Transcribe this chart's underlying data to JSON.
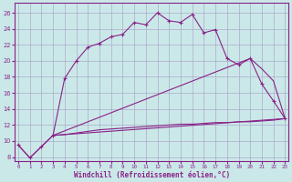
{
  "xlabel": "Windchill (Refroidissement éolien,°C)",
  "background_color": "#cbe8e8",
  "grid_color": "#aaaacc",
  "line_color": "#882288",
  "x_ticks": [
    0,
    1,
    2,
    3,
    4,
    5,
    6,
    7,
    8,
    9,
    10,
    11,
    12,
    13,
    14,
    15,
    16,
    17,
    18,
    19,
    20,
    21,
    22,
    23
  ],
  "y_ticks": [
    8,
    10,
    12,
    14,
    16,
    18,
    20,
    22,
    24,
    26
  ],
  "xlim": [
    -0.3,
    23.3
  ],
  "ylim": [
    7.5,
    27.2
  ],
  "series": {
    "line1_x": [
      0,
      1,
      2,
      3,
      4,
      5,
      6,
      7,
      8,
      9,
      10,
      11,
      12,
      13,
      14,
      15,
      16,
      17,
      18,
      19,
      20,
      21,
      22,
      23
    ],
    "line1_y": [
      9.5,
      7.9,
      9.3,
      10.7,
      17.8,
      20.0,
      21.7,
      22.2,
      23.0,
      23.3,
      24.8,
      24.5,
      26.0,
      25.0,
      24.8,
      25.8,
      23.5,
      23.9,
      20.3,
      19.5,
      20.3,
      17.1,
      15.0,
      12.8
    ],
    "line2_x": [
      0,
      1,
      2,
      3,
      4,
      5,
      6,
      7,
      8,
      9,
      10,
      11,
      12,
      13,
      14,
      15,
      16,
      17,
      18,
      19,
      20,
      21,
      22,
      23
    ],
    "line2_y": [
      9.5,
      7.9,
      9.3,
      10.7,
      10.8,
      11.0,
      11.2,
      11.4,
      11.5,
      11.6,
      11.7,
      11.8,
      11.9,
      12.0,
      12.1,
      12.1,
      12.2,
      12.3,
      12.3,
      12.4,
      12.4,
      12.5,
      12.6,
      12.8
    ],
    "line3_x": [
      3,
      23
    ],
    "line3_y": [
      10.7,
      12.8
    ],
    "line4_x": [
      3,
      20,
      21,
      22,
      23
    ],
    "line4_y": [
      10.7,
      20.3,
      19.0,
      17.5,
      12.8
    ]
  }
}
